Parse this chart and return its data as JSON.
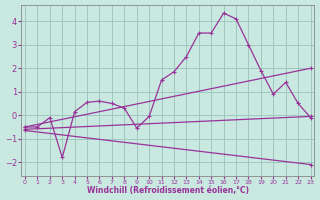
{
  "background_color": "#c8e8e0",
  "grid_color": "#a0c8c0",
  "line_color": "#993399",
  "xlim": [
    -0.3,
    23.3
  ],
  "ylim": [
    -2.6,
    4.7
  ],
  "xlabel": "Windchill (Refroidissement éolien,°C)",
  "yticks": [
    -2,
    -1,
    0,
    1,
    2,
    3,
    4
  ],
  "xtick_labels": [
    "0",
    "1",
    "2",
    "3",
    "4",
    "5",
    "6",
    "7",
    "8",
    "9",
    "10",
    "11",
    "12",
    "13",
    "14",
    "15",
    "16",
    "17",
    "18",
    "19",
    "20",
    "21",
    "22",
    "23"
  ],
  "line1_x": [
    0,
    1,
    2,
    3,
    4,
    5,
    6,
    7,
    8,
    9,
    10,
    11,
    12,
    13,
    14,
    15,
    16,
    17,
    18,
    19,
    20,
    21,
    22,
    23
  ],
  "line1_y": [
    -0.5,
    -0.5,
    -0.1,
    -1.8,
    0.15,
    0.55,
    0.6,
    0.5,
    0.3,
    -0.55,
    -0.05,
    1.5,
    1.85,
    2.5,
    3.5,
    3.5,
    4.35,
    4.1,
    3.0,
    1.9,
    0.9,
    1.4,
    0.5,
    -0.1
  ],
  "line2_x": [
    0,
    23
  ],
  "line2_y": [
    -0.6,
    -0.05
  ],
  "line3_x": [
    0,
    23
  ],
  "line3_y": [
    -0.5,
    2.0
  ],
  "line4_x": [
    0,
    23
  ],
  "line4_y": [
    -0.65,
    -2.1
  ]
}
